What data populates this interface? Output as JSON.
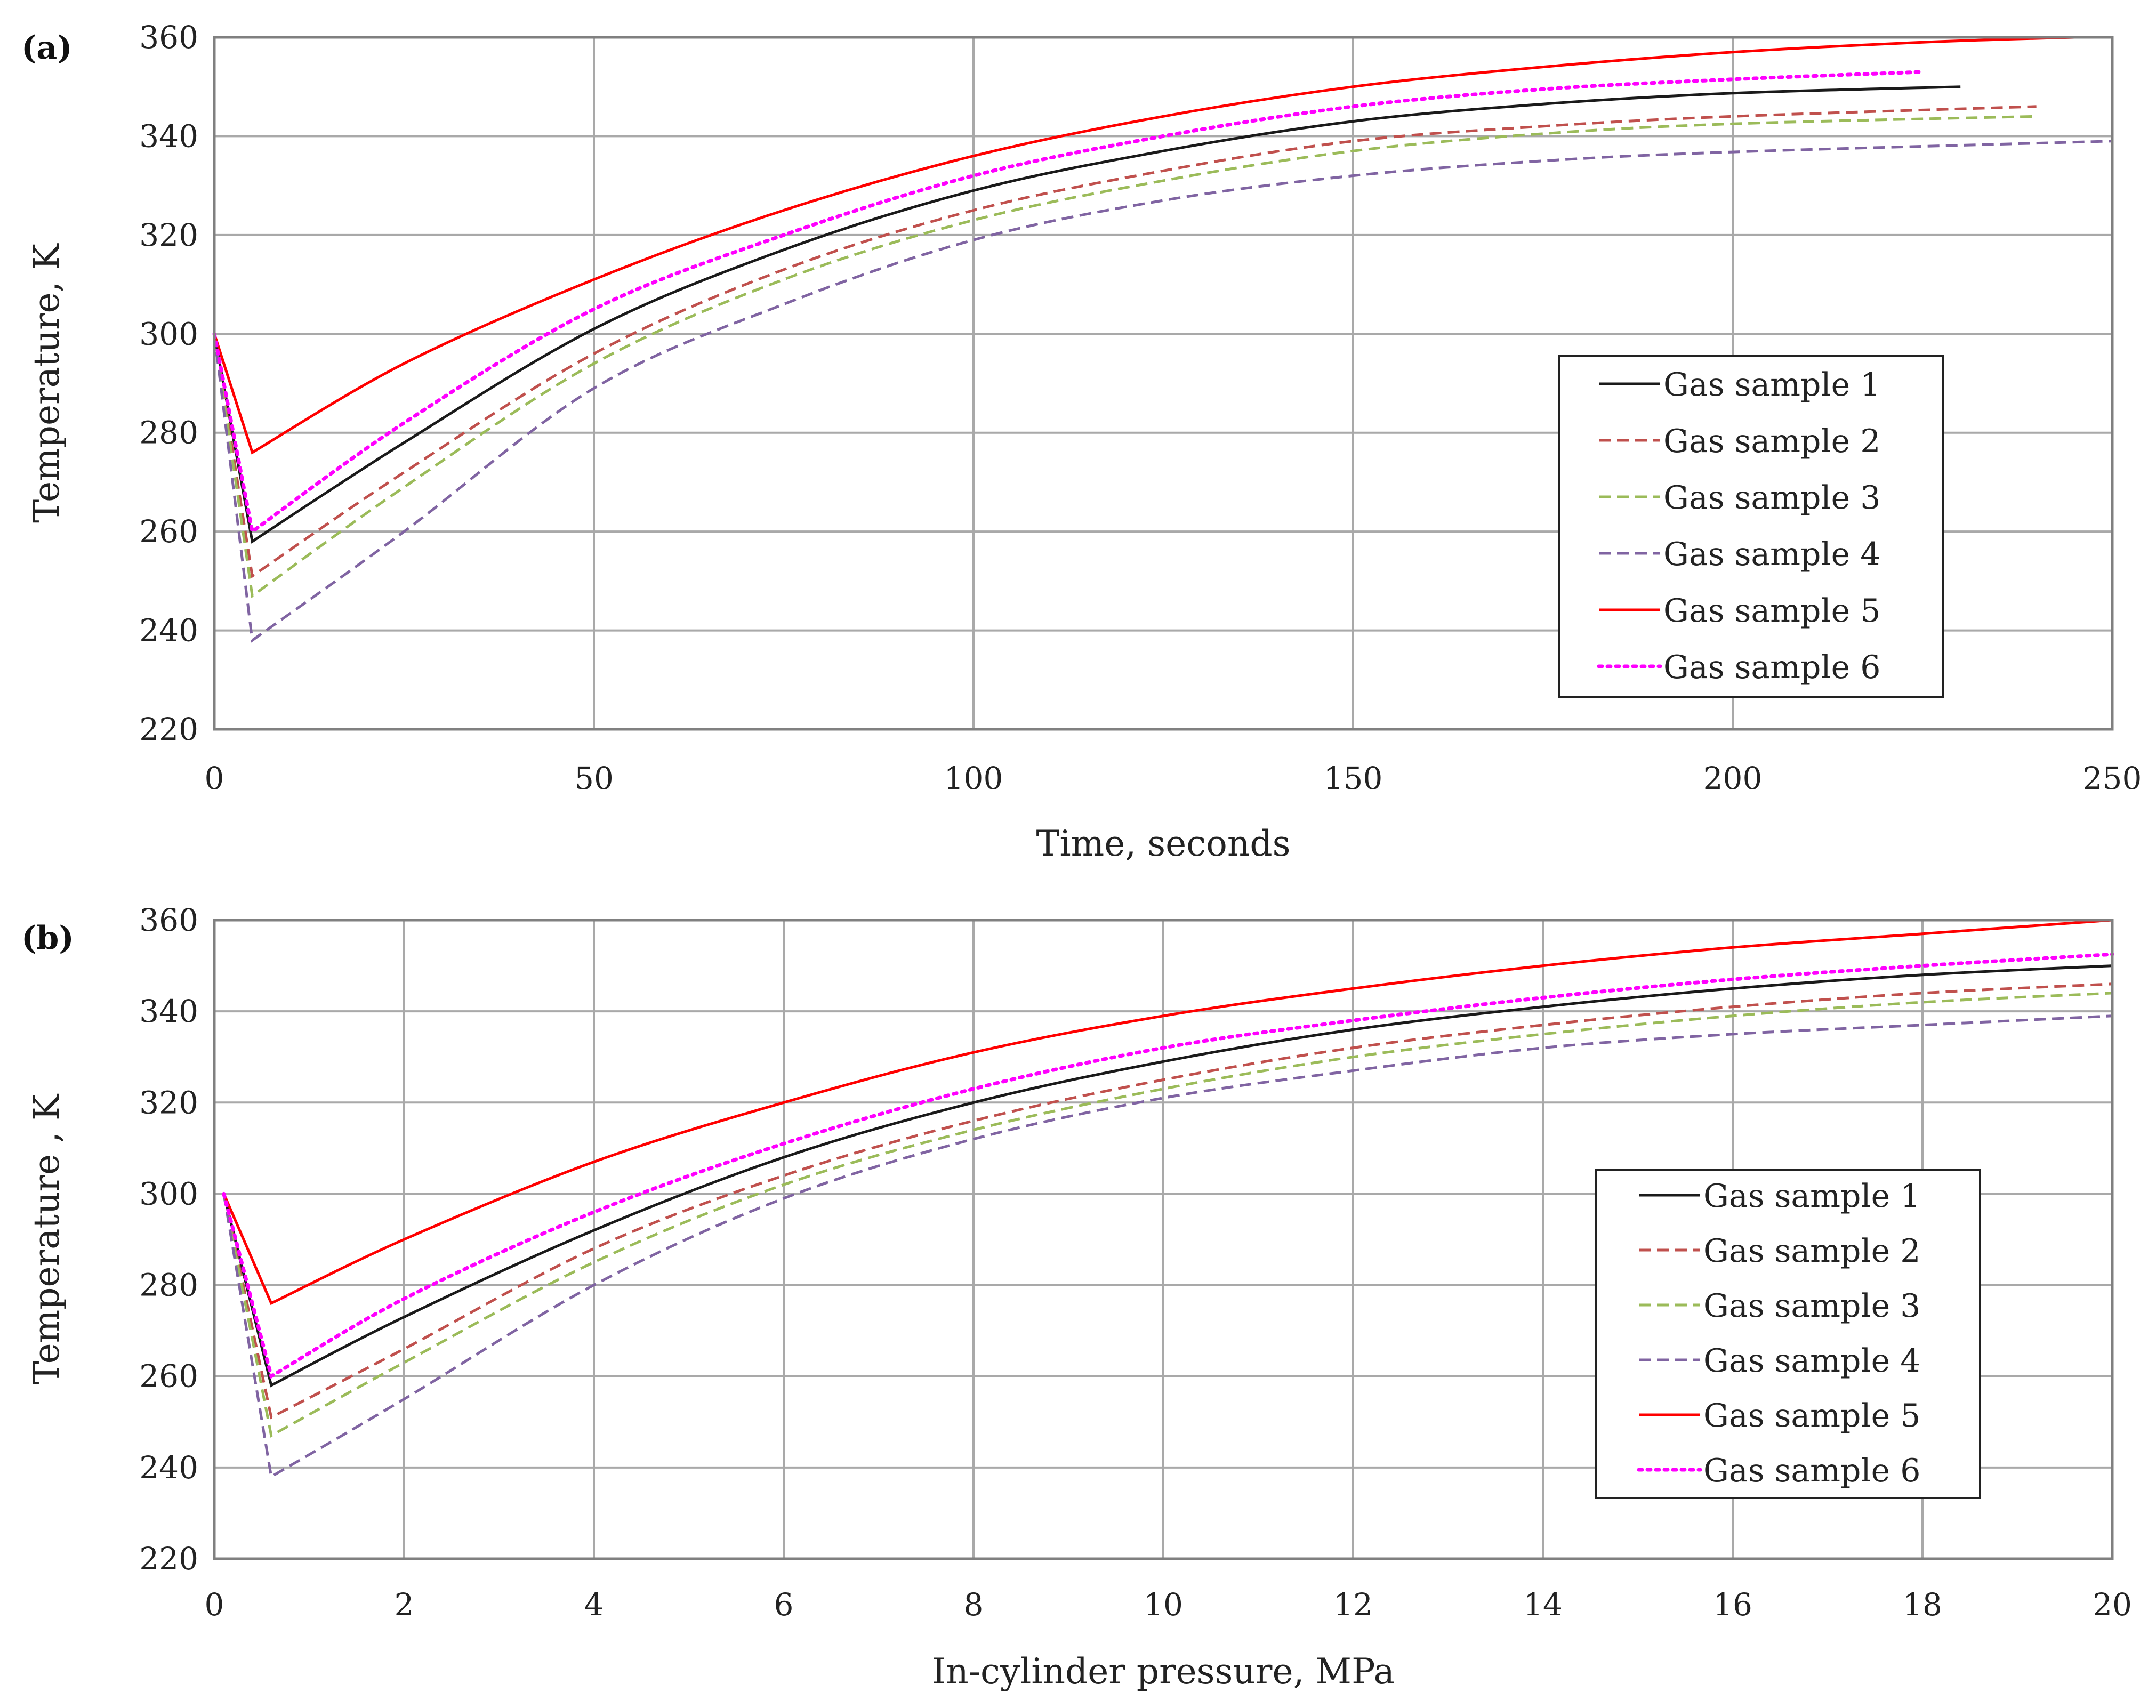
{
  "colors": {
    "s1": "#1a1a1a",
    "s2": "#c0504d",
    "s3": "#9bbb59",
    "s4": "#8064a2",
    "s5": "#ff0000",
    "s6": "#ff00ff"
  },
  "chart_data": [
    {
      "type": "line",
      "panel_label": "(a)",
      "xlabel": "Time, seconds",
      "ylabel": "Temperature, K",
      "xlim": [
        0,
        250
      ],
      "ylim": [
        220,
        360
      ],
      "xticks": [
        "0",
        "50",
        "100",
        "150",
        "200",
        "250"
      ],
      "yticks": [
        "220",
        "240",
        "260",
        "280",
        "300",
        "320",
        "340",
        "360"
      ],
      "legend_position": "right-middle",
      "series": [
        {
          "name": "Gas sample 1",
          "color_key": "s1",
          "dash": "solid",
          "x": [
            0,
            5,
            25,
            50,
            75,
            100,
            125,
            150,
            175,
            200,
            230
          ],
          "y": [
            300,
            258,
            278,
            301,
            317,
            329,
            337,
            343,
            346.5,
            348.7,
            350
          ]
        },
        {
          "name": "Gas sample 2",
          "color_key": "s2",
          "dash": "dashed",
          "x": [
            0,
            5,
            25,
            50,
            75,
            100,
            125,
            150,
            175,
            200,
            240
          ],
          "y": [
            300,
            251,
            272,
            296,
            313,
            325,
            333,
            339,
            342,
            344,
            346
          ]
        },
        {
          "name": "Gas sample 3",
          "color_key": "s3",
          "dash": "dashed",
          "x": [
            0,
            5,
            25,
            50,
            75,
            100,
            125,
            150,
            175,
            200,
            240
          ],
          "y": [
            300,
            247,
            269,
            294,
            311,
            323,
            331,
            337,
            340.5,
            342.5,
            344
          ]
        },
        {
          "name": "Gas sample 4",
          "color_key": "s4",
          "dash": "dashed",
          "x": [
            0,
            5,
            25,
            50,
            75,
            100,
            125,
            150,
            175,
            200,
            250
          ],
          "y": [
            300,
            238,
            260,
            289,
            306,
            319,
            327,
            332,
            335,
            336.8,
            339
          ]
        },
        {
          "name": "Gas sample 5",
          "color_key": "s5",
          "dash": "solid",
          "x": [
            0,
            5,
            25,
            50,
            75,
            100,
            125,
            150,
            175,
            200,
            225,
            245
          ],
          "y": [
            300,
            276,
            294,
            311,
            325,
            336,
            344,
            350,
            354,
            357,
            359,
            360
          ]
        },
        {
          "name": "Gas sample 6",
          "color_key": "s6",
          "dash": "dotted",
          "x": [
            0,
            5,
            25,
            50,
            75,
            100,
            125,
            150,
            175,
            200,
            225
          ],
          "y": [
            300,
            260,
            282,
            305,
            320,
            332,
            340,
            346,
            349.5,
            351.5,
            353
          ]
        }
      ]
    },
    {
      "type": "line",
      "panel_label": "(b)",
      "xlabel": "In-cylinder pressure, MPa",
      "ylabel": "Temperature , K",
      "xlim": [
        0,
        20
      ],
      "ylim": [
        220,
        360
      ],
      "xticks": [
        "0",
        "2",
        "4",
        "6",
        "8",
        "10",
        "12",
        "14",
        "16",
        "18",
        "20"
      ],
      "yticks": [
        "220",
        "240",
        "260",
        "280",
        "300",
        "320",
        "340",
        "360"
      ],
      "legend_position": "right-middle",
      "series": [
        {
          "name": "Gas sample 1",
          "color_key": "s1",
          "dash": "solid",
          "x": [
            0.1,
            0.6,
            2,
            4,
            6,
            8,
            10,
            12,
            14,
            16,
            18,
            20
          ],
          "y": [
            300,
            258,
            273,
            292,
            308,
            320,
            329,
            336,
            341,
            345,
            348,
            350
          ]
        },
        {
          "name": "Gas sample 2",
          "color_key": "s2",
          "dash": "dashed",
          "x": [
            0.1,
            0.6,
            2,
            4,
            6,
            8,
            10,
            12,
            14,
            16,
            18,
            20
          ],
          "y": [
            300,
            251,
            266,
            288,
            304,
            316,
            325,
            332,
            337,
            341,
            344,
            346
          ]
        },
        {
          "name": "Gas sample 3",
          "color_key": "s3",
          "dash": "dashed",
          "x": [
            0.1,
            0.6,
            2,
            4,
            6,
            8,
            10,
            12,
            14,
            16,
            18,
            20
          ],
          "y": [
            300,
            247,
            263,
            285,
            302,
            314,
            323,
            330,
            335,
            339,
            342,
            344
          ]
        },
        {
          "name": "Gas sample 4",
          "color_key": "s4",
          "dash": "dashed",
          "x": [
            0.1,
            0.6,
            2,
            4,
            6,
            8,
            10,
            12,
            14,
            16,
            18,
            20
          ],
          "y": [
            300,
            238,
            255,
            280,
            299,
            312,
            321,
            327,
            332,
            335,
            337,
            339
          ]
        },
        {
          "name": "Gas sample 5",
          "color_key": "s5",
          "dash": "solid",
          "x": [
            0.1,
            0.6,
            2,
            4,
            6,
            8,
            10,
            12,
            14,
            16,
            18,
            20
          ],
          "y": [
            300,
            276,
            290,
            307,
            320,
            331,
            339,
            345,
            350,
            354,
            357,
            360
          ]
        },
        {
          "name": "Gas sample 6",
          "color_key": "s6",
          "dash": "dotted",
          "x": [
            0.1,
            0.6,
            2,
            4,
            6,
            8,
            10,
            12,
            14,
            16,
            18,
            20
          ],
          "y": [
            300,
            260,
            277,
            296,
            311,
            323,
            332,
            338,
            343,
            347,
            350,
            352.5
          ]
        }
      ]
    }
  ]
}
